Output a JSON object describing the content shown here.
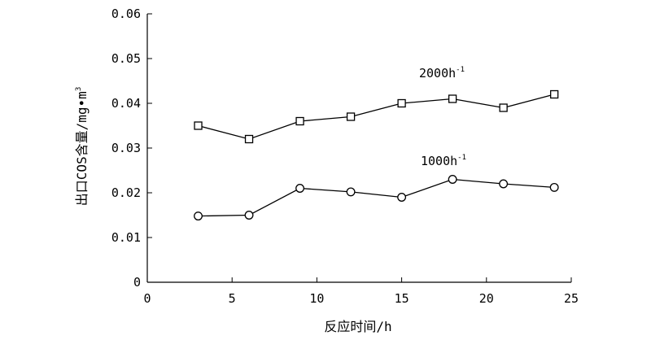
{
  "chart_data": {
    "type": "line",
    "title": "",
    "xlabel": "反应时间/h",
    "ylabel": "出口COS含量/mg•m",
    "ylabel_superscript": "3",
    "xlim": [
      0,
      25
    ],
    "ylim": [
      0,
      0.06
    ],
    "x_ticks": [
      "0",
      "5",
      "10",
      "15",
      "20",
      "25"
    ],
    "y_ticks": [
      "0",
      "0.01",
      "0.02",
      "0.03",
      "0.04",
      "0.05",
      "0.06"
    ],
    "grid": false,
    "legend": "none",
    "series": [
      {
        "name": "2000h",
        "name_superscript": "-1",
        "marker": "square",
        "x": [
          3,
          6,
          9,
          12,
          15,
          18,
          21,
          24
        ],
        "values": [
          0.035,
          0.032,
          0.036,
          0.037,
          0.04,
          0.041,
          0.039,
          0.042
        ]
      },
      {
        "name": "1000h",
        "name_superscript": "-1",
        "marker": "circle",
        "x": [
          3,
          6,
          9,
          12,
          15,
          18,
          21,
          24
        ],
        "values": [
          0.0148,
          0.015,
          0.021,
          0.0202,
          0.019,
          0.023,
          0.022,
          0.0212
        ]
      }
    ]
  }
}
